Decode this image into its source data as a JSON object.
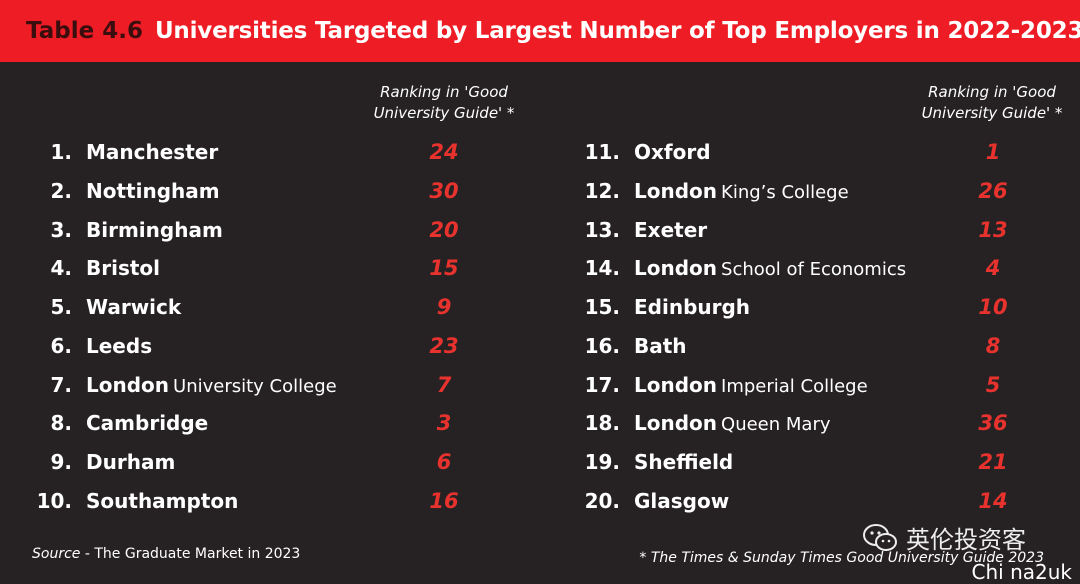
{
  "header": {
    "table_number": "Table 4.6",
    "title": "Universities Targeted by Largest Number of Top Employers in 2022-2023"
  },
  "column_header": "Ranking in 'Good University Guide' *",
  "left_list": [
    {
      "num": "1.",
      "name": "Manchester",
      "sub": "",
      "rank": "24"
    },
    {
      "num": "2.",
      "name": "Nottingham",
      "sub": "",
      "rank": "30"
    },
    {
      "num": "3.",
      "name": "Birmingham",
      "sub": "",
      "rank": "20"
    },
    {
      "num": "4.",
      "name": "Bristol",
      "sub": "",
      "rank": "15"
    },
    {
      "num": "5.",
      "name": "Warwick",
      "sub": "",
      "rank": "9"
    },
    {
      "num": "6.",
      "name": "Leeds",
      "sub": "",
      "rank": "23"
    },
    {
      "num": "7.",
      "name": "London",
      "sub": "University College",
      "rank": "7"
    },
    {
      "num": "8.",
      "name": "Cambridge",
      "sub": "",
      "rank": "3"
    },
    {
      "num": "9.",
      "name": "Durham",
      "sub": "",
      "rank": "6"
    },
    {
      "num": "10.",
      "name": "Southampton",
      "sub": "",
      "rank": "16"
    }
  ],
  "right_list": [
    {
      "num": "11.",
      "name": "Oxford",
      "sub": "",
      "rank": "1"
    },
    {
      "num": "12.",
      "name": "London",
      "sub": "King’s College",
      "rank": "26"
    },
    {
      "num": "13.",
      "name": "Exeter",
      "sub": "",
      "rank": "13"
    },
    {
      "num": "14.",
      "name": "London",
      "sub": "School of Economics",
      "rank": "4"
    },
    {
      "num": "15.",
      "name": "Edinburgh",
      "sub": "",
      "rank": "10"
    },
    {
      "num": "16.",
      "name": "Bath",
      "sub": "",
      "rank": "8"
    },
    {
      "num": "17.",
      "name": "London",
      "sub": "Imperial College",
      "rank": "5"
    },
    {
      "num": "18.",
      "name": "London",
      "sub": "Queen Mary",
      "rank": "36"
    },
    {
      "num": "19.",
      "name": "Sheffield",
      "sub": "",
      "rank": "21"
    },
    {
      "num": "20.",
      "name": "Glasgow",
      "sub": "",
      "rank": "14"
    }
  ],
  "source": {
    "label": "Source",
    "text": " - The Graduate Market in 2023"
  },
  "footnote": "* The Times & Sunday Times Good University Guide 2023",
  "watermark": {
    "icon": "wechat-icon",
    "text": "英伦投资客",
    "handle": "Chi na2uk"
  },
  "colors": {
    "banner": "#ee1c25",
    "background": "#262223",
    "rank": "#e8322e",
    "table_number": "#3a0d0e"
  }
}
